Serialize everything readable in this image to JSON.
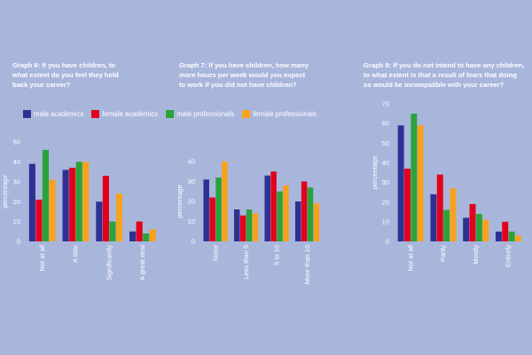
{
  "legend": [
    {
      "name": "male academics",
      "color": "#2e3192"
    },
    {
      "name": "female academics",
      "color": "#e3001b"
    },
    {
      "name": "male professionals",
      "color": "#2aa33a"
    },
    {
      "name": "female professionals",
      "color": "#f7a21d"
    }
  ],
  "chart_data": [
    {
      "type": "bar",
      "title_lines": [
        "Graph 6: If you have children, to",
        "what extent do you feel they hold",
        "back your career?"
      ],
      "ylabel": "percentage",
      "ylim": [
        0,
        50
      ],
      "yticks": [
        "0",
        "10",
        "20",
        "30",
        "40",
        "50"
      ],
      "categories": [
        "Not at all",
        "A little",
        "Significantly",
        "A great deal"
      ],
      "series": [
        {
          "name": "male academics",
          "values": [
            39,
            36,
            20,
            5
          ]
        },
        {
          "name": "female academics",
          "values": [
            21,
            37,
            33,
            10
          ]
        },
        {
          "name": "male professionals",
          "values": [
            46,
            40,
            10,
            4
          ]
        },
        {
          "name": "female professionals",
          "values": [
            31,
            40,
            24,
            6
          ]
        }
      ]
    },
    {
      "type": "bar",
      "title_lines": [
        "Graph 7: If you have children, how many",
        "more hours per week would you expect",
        "to work if you did not have children?"
      ],
      "ylabel": "percentage",
      "ylim": [
        0,
        40
      ],
      "yticks": [
        "0",
        "10",
        "20",
        "30",
        "40"
      ],
      "categories": [
        "None",
        "Less than 5",
        "5 to 10",
        "More than 10"
      ],
      "series": [
        {
          "name": "male academics",
          "values": [
            31,
            16,
            33,
            20
          ]
        },
        {
          "name": "female academics",
          "values": [
            22,
            13,
            35,
            30
          ]
        },
        {
          "name": "male professionals",
          "values": [
            32,
            16,
            25,
            27
          ]
        },
        {
          "name": "female professionals",
          "values": [
            40,
            14,
            28,
            19
          ]
        }
      ]
    },
    {
      "type": "bar",
      "title_lines": [
        "Graph 8: If you do not intend to have any children,",
        "to what extent is that a result of fears that doing",
        "so would be incompatible with your career?"
      ],
      "ylabel": "percentage",
      "ylim": [
        0,
        70
      ],
      "yticks": [
        "0",
        "10",
        "20",
        "30",
        "40",
        "50",
        "60",
        "70"
      ],
      "categories": [
        "Not at all",
        "Partly",
        "Mostly",
        "Entirely"
      ],
      "series": [
        {
          "name": "male academics",
          "values": [
            59,
            24,
            12,
            5
          ]
        },
        {
          "name": "female academics",
          "values": [
            37,
            34,
            19,
            10
          ]
        },
        {
          "name": "male professionals",
          "values": [
            65,
            16,
            14,
            5
          ]
        },
        {
          "name": "female professionals",
          "values": [
            59,
            27,
            11,
            3
          ]
        }
      ]
    }
  ]
}
